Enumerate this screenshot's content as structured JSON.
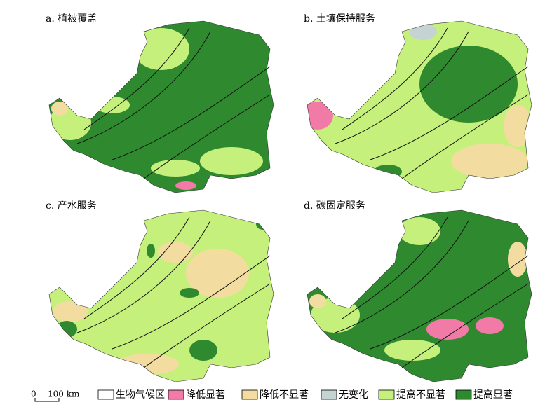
{
  "panels": [
    {
      "title": "a. 植被覆盖"
    },
    {
      "title": "b. 土壤保持服务"
    },
    {
      "title": "c. 产水服务"
    },
    {
      "title": "d. 碳固定服务"
    }
  ],
  "scale_bar": {
    "start": "0",
    "end": "100 km"
  },
  "legend": [
    {
      "label": "生物气候区",
      "color": "#ffffff"
    },
    {
      "label": "降低显著",
      "color": "#f27aa6"
    },
    {
      "label": "降低不显著",
      "color": "#f3dca0"
    },
    {
      "label": "无变化",
      "color": "#c5d3d3"
    },
    {
      "label": "提高不显著",
      "color": "#c6f07c"
    },
    {
      "label": "提高显著",
      "color": "#2f8a2f"
    }
  ]
}
